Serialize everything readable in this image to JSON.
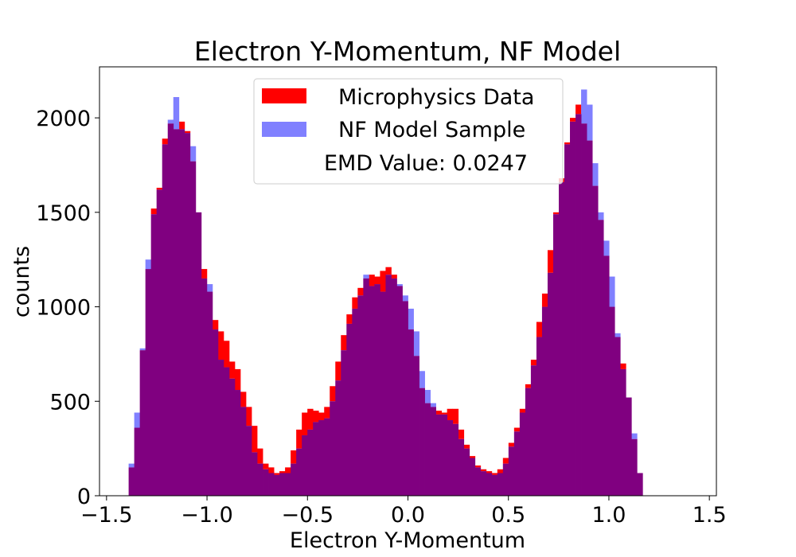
{
  "chart_data": {
    "type": "bar",
    "title": "Electron Y-Momentum, NF Model",
    "xlabel": "Electron Y-Momentum",
    "ylabel": "counts",
    "xlim": [
      -1.535,
      1.535
    ],
    "ylim": [
      0,
      2270
    ],
    "x_ticks": [
      -1.5,
      -1.0,
      -0.5,
      0.0,
      0.5,
      1.0,
      1.5
    ],
    "x_tick_labels": [
      "−1.5",
      "−1.0",
      "−0.5",
      "0.0",
      "0.5",
      "1.0",
      "1.5"
    ],
    "y_ticks": [
      0,
      500,
      1000,
      1500,
      2000
    ],
    "y_tick_labels": [
      "0",
      "500",
      "1000",
      "1500",
      "2000"
    ],
    "grid": false,
    "legend_position": "top-center",
    "bin_start": -1.39,
    "bin_width": 0.0278,
    "colors": {
      "red": "#ff0000",
      "blue": "#8080ff",
      "overlap": "#800080"
    },
    "series": [
      {
        "name": "Microphysics Data",
        "color": "#ff0000",
        "values": [
          150,
          360,
          770,
          1200,
          1520,
          1630,
          1890,
          1970,
          1940,
          1980,
          1930,
          1770,
          1500,
          1200,
          1080,
          930,
          870,
          820,
          710,
          670,
          550,
          470,
          370,
          250,
          170,
          150,
          120,
          130,
          150,
          240,
          350,
          440,
          460,
          450,
          440,
          470,
          580,
          710,
          850,
          960,
          1050,
          1100,
          1150,
          1170,
          1160,
          1190,
          1210,
          1170,
          1110,
          1030,
          880,
          740,
          570,
          490,
          470,
          450,
          440,
          460,
          460,
          350,
          270,
          210,
          160,
          140,
          130,
          120,
          140,
          200,
          280,
          360,
          460,
          590,
          720,
          920,
          1070,
          1300,
          1500,
          1680,
          1870,
          2000,
          2070,
          1970,
          1880,
          1640,
          1460,
          1270,
          1000,
          840,
          700,
          520,
          300,
          120
        ]
      },
      {
        "name": "NF Model Sample",
        "color": "#8080ff",
        "values": [
          170,
          440,
          780,
          1250,
          1490,
          1620,
          1860,
          1990,
          2110,
          1940,
          1920,
          1850,
          1500,
          1150,
          1120,
          880,
          720,
          680,
          620,
          560,
          470,
          370,
          230,
          170,
          140,
          120,
          110,
          120,
          120,
          170,
          250,
          320,
          350,
          390,
          400,
          410,
          500,
          610,
          770,
          910,
          990,
          1060,
          1170,
          1110,
          1120,
          1080,
          1170,
          1150,
          1120,
          1060,
          990,
          870,
          660,
          560,
          490,
          430,
          430,
          400,
          380,
          300,
          250,
          200,
          150,
          130,
          120,
          110,
          120,
          170,
          260,
          340,
          440,
          570,
          690,
          840,
          1000,
          1180,
          1490,
          1660,
          1860,
          1980,
          2020,
          2150,
          2070,
          1760,
          1500,
          1350,
          1160,
          860,
          670,
          520,
          330,
          120
        ]
      }
    ],
    "annotation": "EMD Value: 0.0247"
  }
}
